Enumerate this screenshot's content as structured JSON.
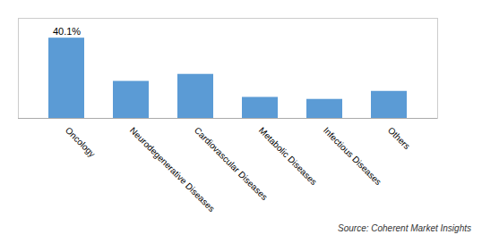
{
  "chart_data": {
    "type": "bar",
    "categories": [
      "Oncology",
      "Neurodegenerative Diseases",
      "Cardiovascular Diseases",
      "Metabolic Diseases",
      "Infectious Diseases",
      "Others"
    ],
    "values": [
      40.1,
      18.5,
      22.0,
      10.5,
      9.5,
      13.5
    ],
    "color": "#5b9bd5",
    "ylim": [
      0,
      50
    ],
    "tick_labels": "x",
    "grid": false,
    "annotations": [
      {
        "category": "Oncology",
        "value": 40.1,
        "text": "40.1%"
      }
    ],
    "caption": "Source: Coherent Market Insights"
  }
}
